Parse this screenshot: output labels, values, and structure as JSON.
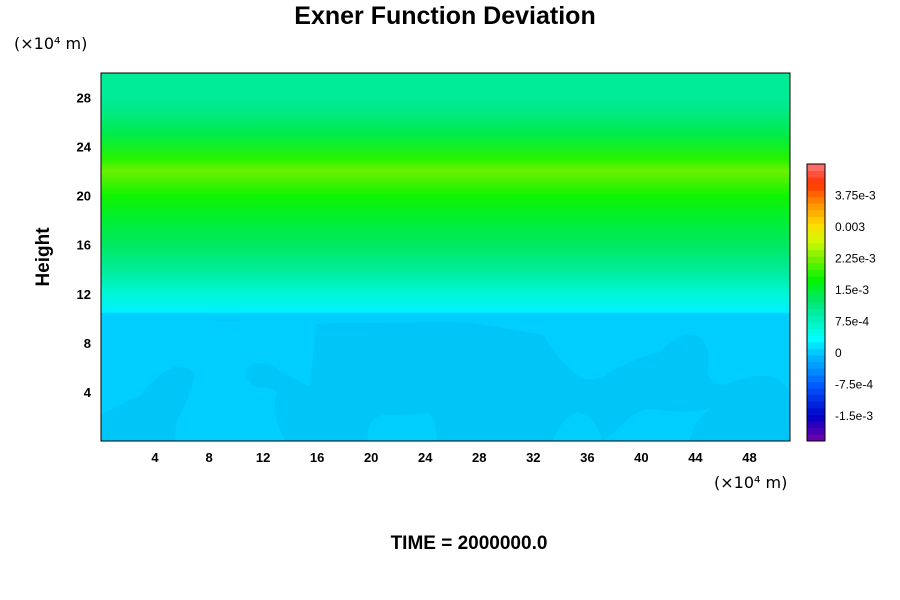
{
  "chart_data": {
    "type": "heatmap",
    "title": "Exner Function Deviation",
    "ylabel": "Height",
    "x_unit": "(×10⁴ m)",
    "y_unit": "(×10⁴ m)",
    "xlim": [
      0,
      51
    ],
    "ylim": [
      0,
      30
    ],
    "x_ticks": [
      "4",
      "8",
      "12",
      "16",
      "20",
      "24",
      "28",
      "32",
      "36",
      "40",
      "44",
      "48"
    ],
    "y_ticks": [
      "4",
      "8",
      "12",
      "16",
      "20",
      "24",
      "28"
    ],
    "colorbar": {
      "range": [
        -0.0021,
        0.0045
      ],
      "tick_values": [
        0.00375,
        0.003,
        0.00225,
        0.0015,
        0.00075,
        0,
        -0.00075,
        -0.0015
      ],
      "tick_labels": [
        "3.75e-3",
        "0.003",
        "2.25e-3",
        "1.5e-3",
        "7.5e-4",
        "0",
        "-7.5e-4",
        "-1.5e-3"
      ]
    },
    "vertical_profile": [
      {
        "height": 0,
        "value": 5e-05
      },
      {
        "height": 10.4,
        "value": 5e-05
      },
      {
        "height": 10.5,
        "value": 0.00025
      },
      {
        "height": 12,
        "value": 0.0006
      },
      {
        "height": 14,
        "value": 0.001
      },
      {
        "height": 16,
        "value": 0.0013
      },
      {
        "height": 18,
        "value": 0.0015
      },
      {
        "height": 20,
        "value": 0.0018
      },
      {
        "height": 21.5,
        "value": 0.0021
      },
      {
        "height": 22,
        "value": 0.0022
      },
      {
        "height": 23,
        "value": 0.0019
      },
      {
        "height": 25,
        "value": 0.0014
      },
      {
        "height": 27,
        "value": 0.0011
      },
      {
        "height": 28,
        "value": 0.001
      },
      {
        "height": 30,
        "value": 0.001
      }
    ],
    "footer": "TIME = 2000000.0"
  }
}
